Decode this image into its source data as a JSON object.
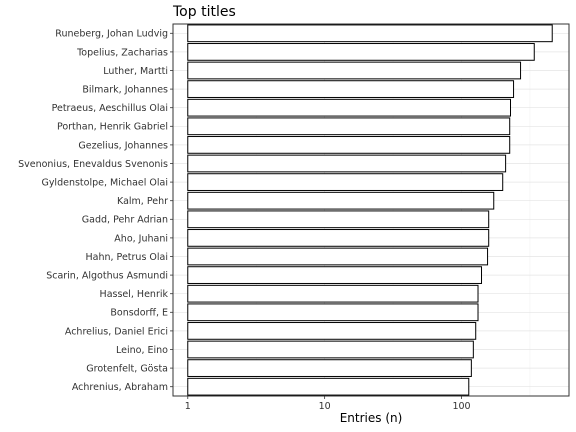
{
  "chart_data": {
    "type": "bar",
    "orientation": "horizontal",
    "title": "Top titles",
    "xlabel": "Entries (n)",
    "ylabel": "",
    "x_scale": "log10",
    "xlim": [
      0.78,
      610
    ],
    "x_ticks": [
      1,
      10,
      100
    ],
    "x_tick_labels": [
      "1",
      "10",
      "100"
    ],
    "grid": true,
    "legend": "none",
    "categories": [
      "Runeberg, Johan Ludvig",
      "Topelius, Zacharias",
      "Luther, Martti",
      "Bilmark, Johannes",
      "Petraeus, Aeschillus Olai",
      "Porthan, Henrik Gabriel",
      "Gezelius, Johannes",
      "Svenonius, Enevaldus Svenonis",
      "Gyldenstolpe, Michael Olai",
      "Kalm, Pehr",
      "Gadd, Pehr Adrian",
      "Aho, Juhani",
      "Hahn, Petrus Olai",
      "Scarin, Algothus Asmundi",
      "Hassel, Henrik",
      "Bonsdorff, E",
      "Achrelius, Daniel Erici",
      "Leino, Eino",
      "Grotenfelt, Gösta",
      "Achrenius, Abraham"
    ],
    "values": [
      460,
      340,
      270,
      240,
      228,
      225,
      225,
      210,
      200,
      172,
      158,
      158,
      155,
      140,
      132,
      132,
      127,
      122,
      118,
      113
    ],
    "colors": {
      "bar_fill": "#ffffff",
      "bar_stroke": "#000000",
      "grid": "#ebebeb",
      "panel_border": "#333333"
    }
  }
}
